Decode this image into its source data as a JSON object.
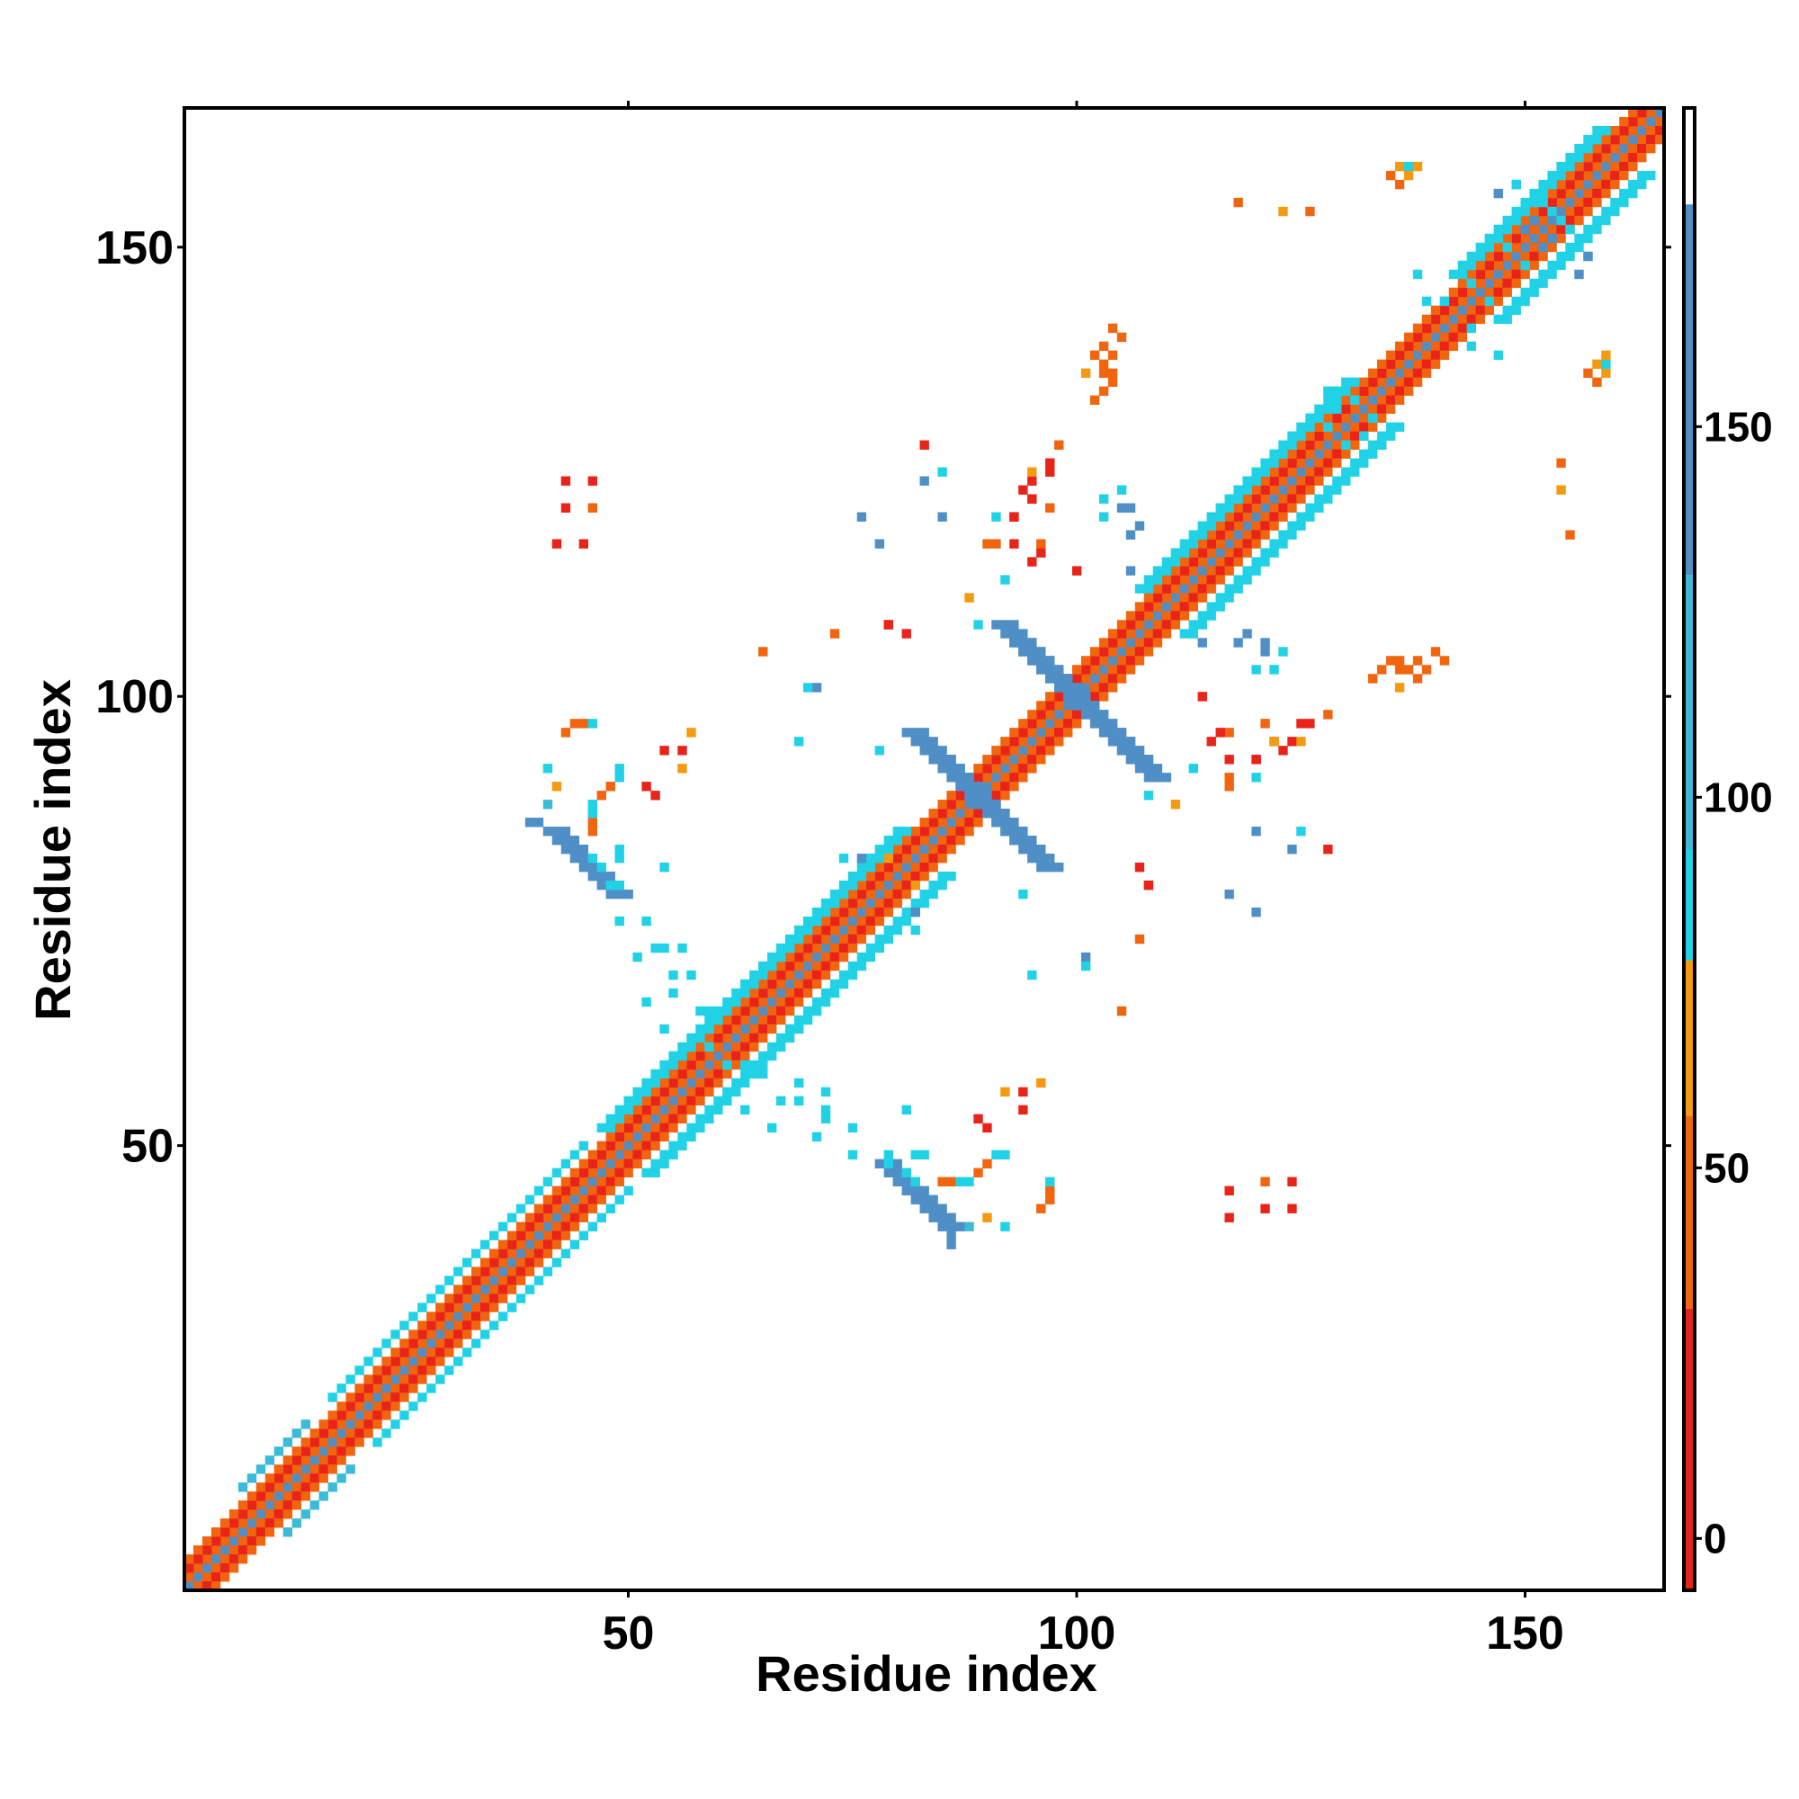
{
  "chart_data": {
    "type": "heatmap",
    "title": "",
    "xlabel": "Residue index",
    "ylabel": "Residue index",
    "xlim": [
      1,
      165
    ],
    "ylim": [
      1,
      165
    ],
    "x_ticks": [
      50,
      100,
      150
    ],
    "y_ticks": [
      50,
      100,
      150
    ],
    "grid": false,
    "colorbar": {
      "ticks": [
        0,
        50,
        100,
        150
      ],
      "range": [
        -7,
        193
      ],
      "bands": [
        {
          "from": -7,
          "to": 31,
          "color": "#e8231a",
          "label_value": ""
        },
        {
          "from": 31,
          "to": 57,
          "color": "#f0650e"
        },
        {
          "from": 57,
          "to": 78,
          "color": "#f39a10"
        },
        {
          "from": 78,
          "to": 93,
          "color": "#21d2e6"
        },
        {
          "from": 93,
          "to": 130,
          "color": "#3bbbd8"
        },
        {
          "from": 130,
          "to": 180,
          "color": "#4f8fc6"
        },
        {
          "from": 180,
          "to": 193,
          "color": "#ffffff"
        }
      ]
    },
    "segments": [
      {
        "from": [
          1,
          1
        ],
        "to": [
          165,
          165
        ],
        "width": 1,
        "value": 175
      },
      {
        "from": [
          1,
          2
        ],
        "to": [
          164,
          165
        ],
        "width": 1,
        "value": 40
      },
      {
        "from": [
          2,
          1
        ],
        "to": [
          165,
          164
        ],
        "width": 1,
        "value": 40
      },
      {
        "from": [
          1,
          3
        ],
        "to": [
          163,
          165
        ],
        "width": 1,
        "value": 10
      },
      {
        "from": [
          3,
          1
        ],
        "to": [
          165,
          163
        ],
        "width": 1,
        "value": 10
      },
      {
        "from": [
          1,
          4
        ],
        "to": [
          162,
          165
        ],
        "width": 1,
        "value": 45
      },
      {
        "from": [
          4,
          1
        ],
        "to": [
          165,
          162
        ],
        "width": 1,
        "value": 45
      },
      {
        "from": [
          7,
          12
        ],
        "to": [
          14,
          19
        ],
        "width": 1,
        "value": 95
      },
      {
        "from": [
          12,
          7
        ],
        "to": [
          19,
          14
        ],
        "width": 1,
        "value": 95
      },
      {
        "from": [
          17,
          22
        ],
        "to": [
          45,
          50
        ],
        "width": 1,
        "value": 90
      },
      {
        "from": [
          22,
          17
        ],
        "to": [
          50,
          45
        ],
        "width": 1,
        "value": 90
      },
      {
        "from": [
          47,
          52
        ],
        "to": [
          63,
          68
        ],
        "width": 2,
        "value": 90
      },
      {
        "from": [
          52,
          47
        ],
        "to": [
          68,
          63
        ],
        "width": 2,
        "value": 90
      },
      {
        "from": [
          63,
          68
        ],
        "to": [
          80,
          85
        ],
        "width": 2,
        "value": 88
      },
      {
        "from": [
          68,
          63
        ],
        "to": [
          85,
          80
        ],
        "width": 2,
        "value": 88
      },
      {
        "from": [
          84,
          93
        ],
        "to": [
          96,
          81
        ],
        "width": 3,
        "value": 140
      },
      {
        "from": [
          93,
          84
        ],
        "to": [
          81,
          96
        ],
        "width": 3,
        "value": 140
      },
      {
        "from": [
          91,
          108
        ],
        "to": [
          106,
          93
        ],
        "width": 3,
        "value": 140
      },
      {
        "from": [
          108,
          91
        ],
        "to": [
          93,
          106
        ],
        "width": 3,
        "value": 140
      },
      {
        "from": [
          107,
          112
        ],
        "to": [
          130,
          135
        ],
        "width": 2,
        "value": 90
      },
      {
        "from": [
          112,
          107
        ],
        "to": [
          135,
          130
        ],
        "width": 2,
        "value": 90
      },
      {
        "from": [
          142,
          147
        ],
        "to": [
          158,
          163
        ],
        "width": 2,
        "value": 90
      },
      {
        "from": [
          147,
          142
        ],
        "to": [
          163,
          158
        ],
        "width": 2,
        "value": 90
      },
      {
        "from": [
          78,
          48
        ],
        "to": [
          85,
          41
        ],
        "width": 3,
        "value": 140
      },
      {
        "from": [
          48,
          78
        ],
        "to": [
          41,
          85
        ],
        "width": 3,
        "value": 140
      }
    ],
    "cells": [
      [
        39,
        86,
        140
      ],
      [
        40,
        86,
        140
      ],
      [
        41,
        88,
        110
      ],
      [
        42,
        90,
        60
      ],
      [
        41,
        92,
        90
      ],
      [
        43,
        96,
        50
      ],
      [
        44,
        97,
        50
      ],
      [
        45,
        97,
        45
      ],
      [
        46,
        97,
        90
      ],
      [
        46,
        82,
        90
      ],
      [
        47,
        81,
        90
      ],
      [
        82,
        49,
        90
      ],
      [
        83,
        49,
        90
      ],
      [
        85,
        46,
        50
      ],
      [
        86,
        46,
        50
      ],
      [
        87,
        46,
        90
      ],
      [
        88,
        46,
        90
      ],
      [
        89,
        47,
        45
      ],
      [
        90,
        48,
        45
      ],
      [
        91,
        49,
        90
      ],
      [
        92,
        49,
        90
      ],
      [
        43,
        124,
        10
      ],
      [
        43,
        121,
        10
      ],
      [
        42,
        117,
        10
      ],
      [
        65,
        105,
        45
      ],
      [
        79,
        108,
        10
      ],
      [
        81,
        107,
        10
      ],
      [
        76,
        120,
        140
      ],
      [
        78,
        117,
        140
      ],
      [
        71,
        101,
        140
      ],
      [
        70,
        101,
        90
      ],
      [
        69,
        95,
        90
      ],
      [
        48,
        79,
        90
      ],
      [
        49,
        79,
        90
      ],
      [
        49,
        75,
        90
      ],
      [
        52,
        75,
        90
      ],
      [
        53,
        72,
        90
      ],
      [
        54,
        72,
        90
      ],
      [
        56,
        72,
        90
      ],
      [
        57,
        69,
        90
      ],
      [
        59,
        65,
        90
      ],
      [
        61,
        59,
        90
      ],
      [
        63,
        59,
        90
      ],
      [
        65,
        58,
        90
      ],
      [
        67,
        55,
        90
      ],
      [
        69,
        55,
        90
      ],
      [
        71,
        51,
        90
      ],
      [
        81,
        54,
        90
      ],
      [
        89,
        53,
        10
      ],
      [
        90,
        52,
        10
      ],
      [
        92,
        56,
        60
      ],
      [
        54,
        94,
        10
      ],
      [
        56,
        94,
        10
      ],
      [
        57,
        96,
        60
      ],
      [
        88,
        111,
        60
      ],
      [
        89,
        108,
        90
      ],
      [
        90,
        117,
        50
      ],
      [
        91,
        117,
        50
      ],
      [
        93,
        117,
        10
      ],
      [
        93,
        120,
        10
      ],
      [
        94,
        123,
        10
      ],
      [
        95,
        122,
        60
      ],
      [
        97,
        121,
        50
      ],
      [
        100,
        114,
        10
      ],
      [
        94,
        78,
        90
      ],
      [
        107,
        73,
        45
      ],
      [
        108,
        79,
        10
      ],
      [
        102,
        133,
        45
      ],
      [
        103,
        134,
        45
      ],
      [
        104,
        135,
        45
      ],
      [
        104,
        136,
        45
      ],
      [
        103,
        136,
        50
      ],
      [
        105,
        123,
        90
      ],
      [
        105,
        121,
        140
      ],
      [
        107,
        119,
        140
      ],
      [
        106,
        114,
        140
      ],
      [
        115,
        95,
        10
      ],
      [
        117,
        96,
        50
      ],
      [
        120,
        93,
        10
      ],
      [
        122,
        95,
        10
      ],
      [
        124,
        95,
        10
      ],
      [
        125,
        95,
        60
      ],
      [
        125,
        97,
        10
      ],
      [
        126,
        97,
        10
      ],
      [
        128,
        98,
        45
      ],
      [
        118,
        106,
        140
      ],
      [
        121,
        106,
        140
      ],
      [
        120,
        103,
        90
      ],
      [
        122,
        103,
        90
      ],
      [
        120,
        85,
        140
      ],
      [
        124,
        83,
        140
      ],
      [
        117,
        45,
        10
      ],
      [
        121,
        46,
        45
      ],
      [
        124,
        46,
        10
      ],
      [
        120,
        91,
        90
      ],
      [
        113,
        92,
        90
      ],
      [
        137,
        103,
        45
      ],
      [
        138,
        104,
        45
      ],
      [
        139,
        103,
        45
      ],
      [
        140,
        105,
        45
      ],
      [
        141,
        104,
        45
      ],
      [
        138,
        102,
        50
      ],
      [
        136,
        101,
        60
      ],
      [
        135,
        158,
        45
      ],
      [
        136,
        159,
        60
      ],
      [
        137,
        159,
        90
      ],
      [
        138,
        159,
        60
      ],
      [
        126,
        154,
        50
      ],
      [
        147,
        138,
        90
      ],
      [
        157,
        136,
        45
      ],
      [
        158,
        137,
        60
      ],
      [
        144,
        146,
        90
      ],
      [
        150,
        148,
        90
      ],
      [
        152,
        147,
        90
      ],
      [
        157,
        149,
        90
      ],
      [
        155,
        152,
        90
      ],
      [
        154,
        153,
        90
      ],
      [
        141,
        144,
        90
      ],
      [
        139,
        144,
        90
      ],
      [
        150,
        152,
        140
      ],
      [
        151,
        153,
        140
      ],
      [
        147,
        156,
        140
      ],
      [
        149,
        157,
        140
      ],
      [
        154,
        123,
        60
      ],
      [
        155,
        118,
        45
      ],
      [
        128,
        83,
        10
      ],
      [
        125,
        85,
        90
      ],
      [
        130,
        128,
        90
      ],
      [
        132,
        129,
        90
      ],
      [
        134,
        128,
        90
      ],
      [
        133,
        131,
        90
      ],
      [
        76,
        82,
        140
      ],
      [
        74,
        82,
        90
      ],
      [
        79,
        82,
        60
      ],
      [
        96,
        116,
        10
      ],
      [
        63,
        54,
        90
      ],
      [
        66,
        52,
        90
      ]
    ]
  }
}
